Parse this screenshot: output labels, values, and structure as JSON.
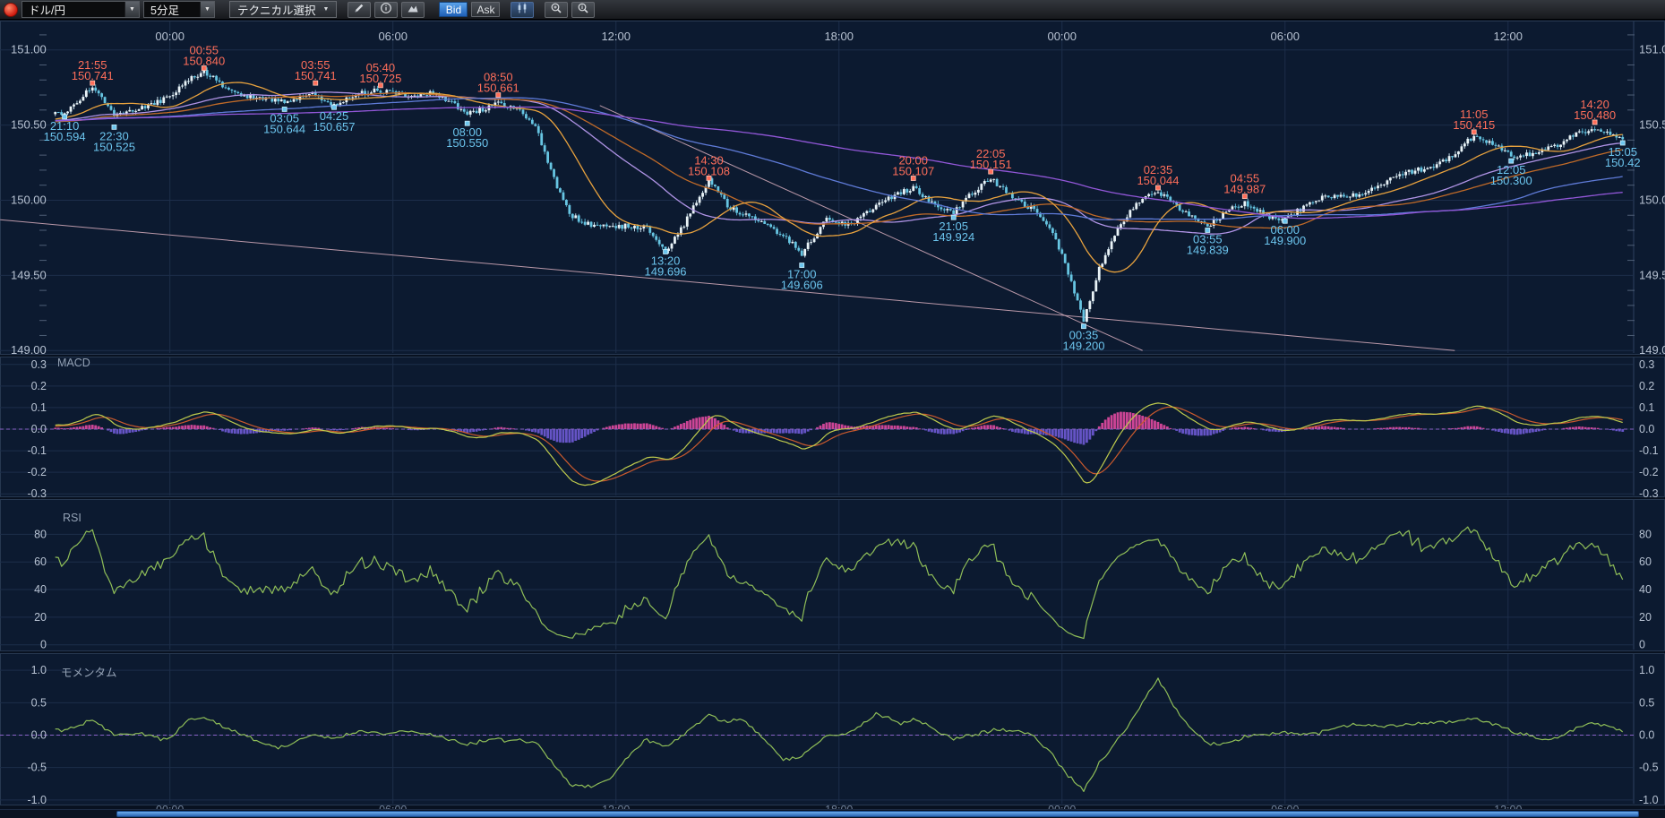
{
  "toolbar": {
    "pair_value": "ドル/円",
    "timeframe_value": "5分足",
    "technical_label": "テクニカル選択",
    "bid_label": "Bid",
    "ask_label": "Ask"
  },
  "panels": {
    "macd_label": "MACD",
    "rsi_label": "RSI",
    "momentum_label": "モメンタム"
  },
  "chart_data": {
    "type": "candlestick",
    "pair": "ドル/円",
    "timeframe": "5分足",
    "time_axis_ticks": [
      {
        "t": 0,
        "label": "00:00"
      },
      {
        "t": 360,
        "label": "06:00"
      },
      {
        "t": 720,
        "label": "12:00"
      },
      {
        "t": 1080,
        "label": "18:00"
      },
      {
        "t": 1440,
        "label": "00:00"
      },
      {
        "t": 1800,
        "label": "06:00"
      },
      {
        "t": 2160,
        "label": "12:00"
      }
    ],
    "price_axis": {
      "range": [
        149.0,
        151.2
      ],
      "minor_step": 0.1,
      "ticks": [
        {
          "v": 151.0,
          "label": "151.00"
        },
        {
          "v": 150.5,
          "label": "150.50"
        },
        {
          "v": 150.0,
          "label": "150.00"
        },
        {
          "v": 149.5,
          "label": "149.50"
        },
        {
          "v": 149.0,
          "label": "149.00"
        }
      ]
    },
    "price_path_anchors": [
      [
        -1685,
        150.42
      ],
      [
        -1500,
        150.55
      ],
      [
        -1300,
        150.46
      ],
      [
        -1100,
        150.6
      ],
      [
        -900,
        150.5
      ],
      [
        -700,
        150.58
      ],
      [
        -500,
        150.47
      ],
      [
        -350,
        150.56
      ],
      [
        -250,
        150.52
      ],
      [
        -185,
        150.6
      ],
      [
        -170,
        150.594
      ],
      [
        -125,
        150.741
      ],
      [
        -90,
        150.525
      ],
      [
        -40,
        150.63
      ],
      [
        0,
        150.68
      ],
      [
        55,
        150.84
      ],
      [
        110,
        150.72
      ],
      [
        185,
        150.644
      ],
      [
        235,
        150.741
      ],
      [
        265,
        150.657
      ],
      [
        340,
        150.725
      ],
      [
        420,
        150.7
      ],
      [
        480,
        150.55
      ],
      [
        530,
        150.661
      ],
      [
        565,
        150.58
      ],
      [
        590,
        150.48
      ],
      [
        615,
        150.18
      ],
      [
        645,
        149.93
      ],
      [
        680,
        149.86
      ],
      [
        720,
        149.82
      ],
      [
        770,
        149.83
      ],
      [
        800,
        149.696
      ],
      [
        830,
        149.85
      ],
      [
        870,
        150.108
      ],
      [
        900,
        149.95
      ],
      [
        930,
        149.9
      ],
      [
        960,
        149.85
      ],
      [
        1000,
        149.7
      ],
      [
        1020,
        149.606
      ],
      [
        1060,
        149.88
      ],
      [
        1100,
        149.85
      ],
      [
        1140,
        149.95
      ],
      [
        1200,
        150.107
      ],
      [
        1235,
        150.0
      ],
      [
        1265,
        149.924
      ],
      [
        1325,
        150.151
      ],
      [
        1360,
        150.05
      ],
      [
        1390,
        149.95
      ],
      [
        1420,
        149.8
      ],
      [
        1445,
        149.55
      ],
      [
        1475,
        149.2
      ],
      [
        1500,
        149.55
      ],
      [
        1530,
        149.8
      ],
      [
        1560,
        149.95
      ],
      [
        1595,
        150.044
      ],
      [
        1635,
        149.95
      ],
      [
        1675,
        149.839
      ],
      [
        1735,
        149.987
      ],
      [
        1770,
        149.93
      ],
      [
        1800,
        149.9
      ],
      [
        1860,
        150.0
      ],
      [
        1920,
        150.05
      ],
      [
        1980,
        150.12
      ],
      [
        2040,
        150.22
      ],
      [
        2105,
        150.415
      ],
      [
        2135,
        150.35
      ],
      [
        2165,
        150.3
      ],
      [
        2200,
        150.34
      ],
      [
        2240,
        150.38
      ],
      [
        2300,
        150.48
      ],
      [
        2330,
        150.46
      ],
      [
        2345,
        150.42
      ]
    ],
    "annotations": {
      "highs": [
        {
          "t": -125,
          "time": "21:55",
          "price": 150.741,
          "label": "150.741"
        },
        {
          "t": 55,
          "time": "00:55",
          "price": 150.84,
          "label": "150.840"
        },
        {
          "t": 235,
          "time": "03:55",
          "price": 150.741,
          "label": "150.741"
        },
        {
          "t": 340,
          "time": "05:40",
          "price": 150.725,
          "label": "150.725"
        },
        {
          "t": 530,
          "time": "08:50",
          "price": 150.661,
          "label": "150.661"
        },
        {
          "t": 870,
          "time": "14:30",
          "price": 150.108,
          "label": "150.108"
        },
        {
          "t": 1200,
          "time": "20:00",
          "price": 150.107,
          "label": "150.107"
        },
        {
          "t": 1325,
          "time": "22:05",
          "price": 150.151,
          "label": "150.151"
        },
        {
          "t": 1595,
          "time": "02:35",
          "price": 150.044,
          "label": "150.044"
        },
        {
          "t": 1735,
          "time": "04:55",
          "price": 149.987,
          "label": "149.987"
        },
        {
          "t": 2105,
          "time": "11:05",
          "price": 150.415,
          "label": "150.415"
        },
        {
          "t": 2300,
          "time": "14:20",
          "price": 150.48,
          "label": "150.480"
        }
      ],
      "lows": [
        {
          "t": -170,
          "time": "21:10",
          "price": 150.594,
          "label": "150.594"
        },
        {
          "t": -90,
          "time": "22:30",
          "price": 150.525,
          "label": "150.525"
        },
        {
          "t": 185,
          "time": "03:05",
          "price": 150.644,
          "label": "150.644"
        },
        {
          "t": 265,
          "time": "04:25",
          "price": 150.657,
          "label": "150.657"
        },
        {
          "t": 480,
          "time": "08:00",
          "price": 150.55,
          "label": "150.550"
        },
        {
          "t": 800,
          "time": "13:20",
          "price": 149.696,
          "label": "149.696"
        },
        {
          "t": 1020,
          "time": "17:00",
          "price": 149.606,
          "label": "149.606"
        },
        {
          "t": 1265,
          "time": "21:05",
          "price": 149.924,
          "label": "149.924"
        },
        {
          "t": 1475,
          "time": "00:35",
          "price": 149.2,
          "label": "149.200"
        },
        {
          "t": 1675,
          "time": "03:55",
          "price": 149.839,
          "label": "149.839"
        },
        {
          "t": 1800,
          "time": "06:00",
          "price": 149.9,
          "label": "149.900"
        },
        {
          "t": 2165,
          "time": "12:05",
          "price": 150.3,
          "label": "150.300"
        },
        {
          "t": 2345,
          "time": "15:05",
          "price": 150.42,
          "label": "150.42"
        }
      ]
    },
    "overlays": {
      "moving_averages": [
        {
          "name": "sma-55",
          "period": 55,
          "color": "#b094e6"
        },
        {
          "name": "sma-75",
          "period": 75,
          "color": "#c06a28"
        },
        {
          "name": "sma-21",
          "period": 21,
          "color": "#e8a23e"
        },
        {
          "name": "sma-144",
          "period": 144,
          "color": "#5f7bd8"
        },
        {
          "name": "sma-240",
          "period": 240,
          "color": "#9257d8"
        }
      ],
      "trend_lines": [
        {
          "from": [
            -274,
            149.87
          ],
          "to": [
            2074,
            149.0
          ]
        },
        {
          "from": [
            694,
            150.63
          ],
          "to": [
            1570,
            149.0
          ]
        }
      ]
    },
    "macd": {
      "fast": 10,
      "slow": 40,
      "signal": 9,
      "range": [
        -0.32,
        0.32
      ],
      "ticks": [
        {
          "v": 0.3,
          "label": "0.3"
        },
        {
          "v": 0.2,
          "label": "0.2"
        },
        {
          "v": 0.1,
          "label": "0.1"
        },
        {
          "v": 0,
          "label": "0.0"
        },
        {
          "v": -0.1,
          "label": "-0.1"
        },
        {
          "v": -0.2,
          "label": "-0.2"
        },
        {
          "v": -0.3,
          "label": "-0.3"
        }
      ]
    },
    "rsi": {
      "period": 14,
      "range": [
        0,
        97
      ],
      "ticks": [
        {
          "v": 80,
          "label": "80"
        },
        {
          "v": 60,
          "label": "60"
        },
        {
          "v": 40,
          "label": "40"
        },
        {
          "v": 20,
          "label": "20"
        },
        {
          "v": 0,
          "label": "0"
        }
      ]
    },
    "momentum": {
      "period": 24,
      "range": [
        -1.0,
        1.0
      ],
      "ticks": [
        {
          "v": 1.0,
          "label": "1.0"
        },
        {
          "v": 0.5,
          "label": "0.5"
        },
        {
          "v": 0,
          "label": "0.0"
        },
        {
          "v": -0.5,
          "label": "-0.5"
        },
        {
          "v": -1.0,
          "label": "-1.0"
        }
      ]
    },
    "colors": {
      "panel_bg": "#0c1a30",
      "panel_border": "#273850",
      "grid": "#1d2e4a",
      "axis_text": "#b7c2d2",
      "bull_candle": "#e9f3f7",
      "bear_candle": "#67c5e2",
      "bull_wick": "#c2dae6",
      "bear_wick": "#55aecb",
      "annotation_high": "#ff6e5a",
      "annotation_low": "#6cc5ee",
      "macd_line": "#bfcb4d",
      "macd_signal": "#cb5a2d",
      "macd_hist_pos": "#d8489c",
      "macd_hist_neg": "#6a57cf",
      "oscillator_line": "#8fbe58",
      "zero_dashed": "#8a62c8",
      "trend_line": "#d9afbe"
    }
  }
}
